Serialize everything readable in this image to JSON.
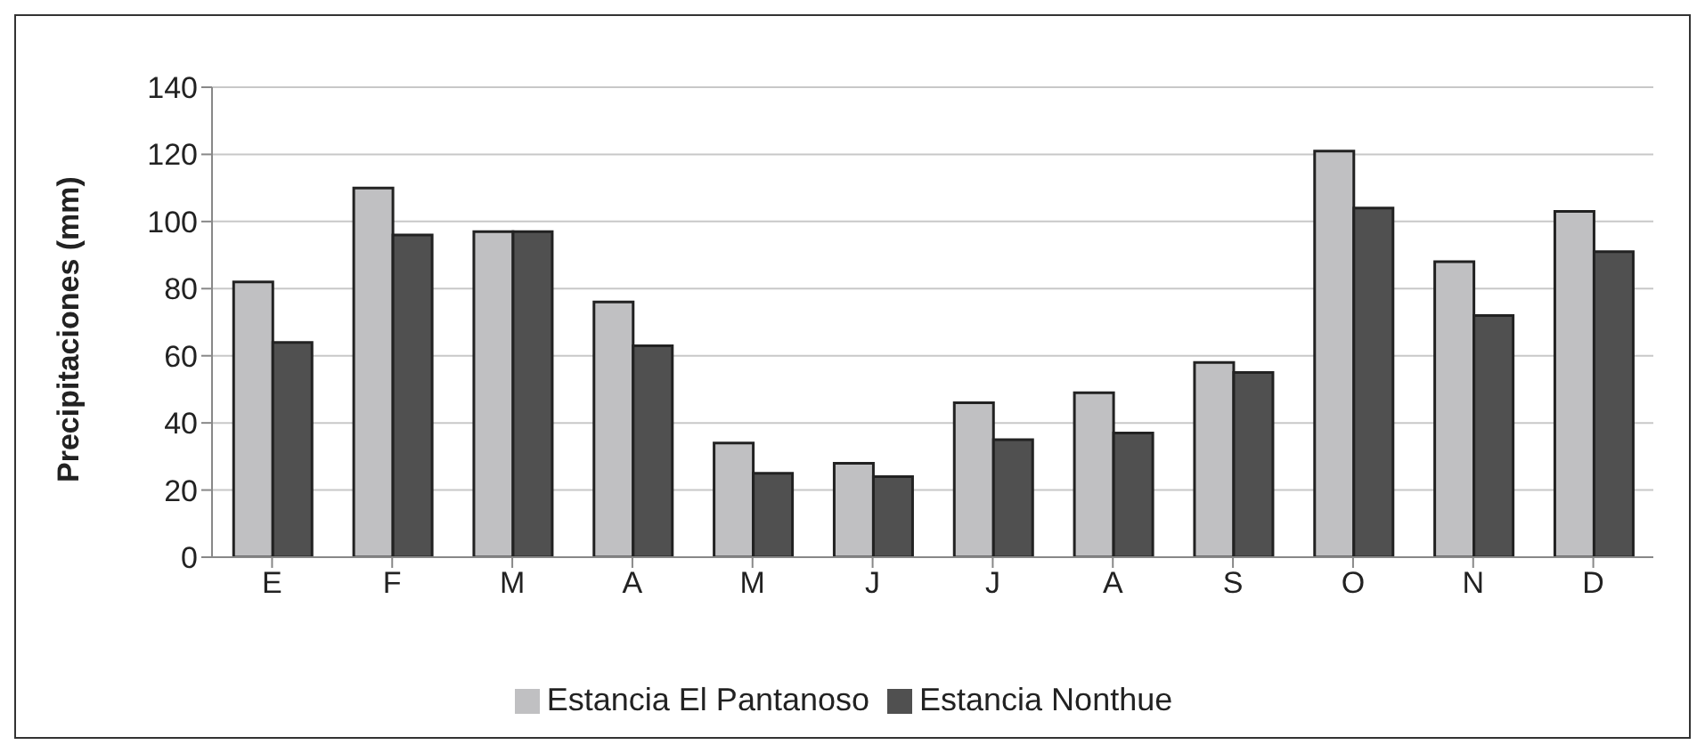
{
  "chart_data": {
    "type": "bar",
    "ylabel": "Precipitaciones (mm)",
    "categories": [
      "E",
      "F",
      "M",
      "A",
      "M",
      "J",
      "J",
      "A",
      "S",
      "O",
      "N",
      "D"
    ],
    "series": [
      {
        "name": "Estancia El Pantanoso",
        "color": "#c0c0c2",
        "values": [
          82,
          110,
          97,
          76,
          34,
          28,
          46,
          49,
          58,
          121,
          88,
          103
        ]
      },
      {
        "name": "Estancia Nonthue",
        "color": "#505050",
        "values": [
          64,
          96,
          97,
          63,
          25,
          24,
          35,
          37,
          55,
          104,
          72,
          91
        ]
      }
    ],
    "ylim": [
      0,
      140
    ],
    "yticks": [
      0,
      20,
      40,
      60,
      80,
      100,
      120,
      140
    ],
    "grid": "y",
    "legend": "bottom"
  }
}
